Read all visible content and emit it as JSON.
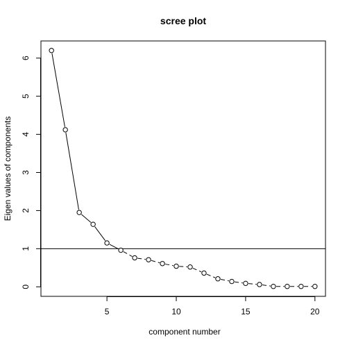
{
  "chart_data": {
    "type": "line",
    "title": "scree plot",
    "xlabel": "component number",
    "ylabel": "Eigen values of components",
    "x": [
      1,
      2,
      3,
      4,
      5,
      6,
      7,
      8,
      9,
      10,
      11,
      12,
      13,
      14,
      15,
      16,
      17,
      18,
      19,
      20
    ],
    "values": [
      6.2,
      4.12,
      1.95,
      1.64,
      1.15,
      0.96,
      0.76,
      0.71,
      0.61,
      0.54,
      0.52,
      0.36,
      0.21,
      0.14,
      0.09,
      0.06,
      0.01,
      0.01,
      0.01,
      0.01
    ],
    "xlim": [
      0.24,
      20.76
    ],
    "ylim": [
      -0.25,
      6.45
    ],
    "xticks": [
      5,
      10,
      15,
      20
    ],
    "yticks": [
      0,
      1,
      2,
      3,
      4,
      5,
      6
    ],
    "reference_line": {
      "y": 1
    },
    "line_style": "solid, dashed after component 6",
    "marker": "open circle",
    "grid": false,
    "colors": {
      "line": "#000000",
      "background": "#ffffff"
    }
  }
}
